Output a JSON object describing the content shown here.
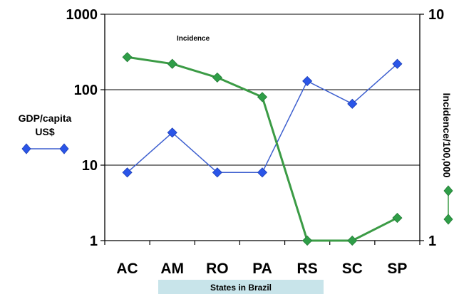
{
  "chart_data": {
    "type": "line",
    "title": "",
    "annotation": "Incidence",
    "xlabel": "States in Brazil",
    "categories": [
      "AC",
      "AM",
      "RO",
      "PA",
      "RS",
      "SC",
      "SP"
    ],
    "y_left": {
      "label": "GDP/capita US$",
      "label_lines": [
        "GDP/capita",
        "US$"
      ],
      "scale": "log",
      "ylim": [
        1,
        1000
      ],
      "ticks": [
        "1",
        "10",
        "100",
        "1000"
      ]
    },
    "y_right": {
      "label": "Incidence/100,000",
      "scale": "log",
      "ylim": [
        1,
        1000
      ],
      "ticks_visible": [
        "1",
        "10"
      ]
    },
    "grid": true,
    "series": [
      {
        "name": "GDP/capita US$",
        "axis": "left",
        "color": "#3d5fcf",
        "marker_color": "#2a55e8",
        "values": [
          8,
          27,
          8,
          8,
          130,
          65,
          220
        ]
      },
      {
        "name": "Incidence/100,000",
        "axis": "right",
        "color": "#3b9b45",
        "marker_color": "#2f9e48",
        "values": [
          270,
          220,
          145,
          80,
          1,
          1,
          2
        ]
      }
    ]
  }
}
